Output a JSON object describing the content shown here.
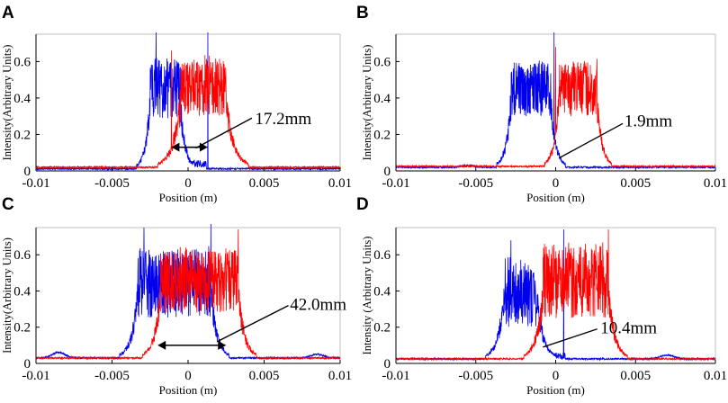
{
  "figure": {
    "colors": {
      "blue": "#0000ee",
      "red": "#ff0000",
      "axis": "#000000",
      "frame": "#bfbfbf"
    }
  },
  "chart_data": [
    {
      "type": "line",
      "panel_label": "A",
      "xlabel": "Position (m)",
      "ylabel": "Intensity(Arbitrary Units)",
      "xlim": [
        -0.01,
        0.01
      ],
      "ylim": [
        0,
        0.75
      ],
      "xticks": [
        -0.01,
        -0.005,
        0,
        0.005,
        0.01
      ],
      "xtick_labels": [
        "-0.01",
        "-0.005",
        "0",
        "0.005",
        "0.01"
      ],
      "yticks": [
        0,
        0.2,
        0.4,
        0.6
      ],
      "ytick_labels": [
        "0",
        "0.2",
        "0.4",
        "0.6"
      ],
      "annotation": {
        "text": "17.2mm",
        "arrow_x": [
          -0.0011,
          0.0013
        ],
        "arrow_y": 0.13,
        "pointer_from": [
          0.0005,
          0.125
        ],
        "pointer_to": [
          0.0042,
          0.29
        ],
        "label_x": 0.0044,
        "label_y": 0.29
      },
      "series": [
        {
          "name": "blue",
          "color": "#0000ee",
          "plateau_x": [
            -0.0025,
            -0.0005
          ],
          "plateau_range": [
            0.28,
            0.62
          ],
          "edge_width": 0.0003,
          "spikes": [
            [
              -0.0021,
              0.76
            ],
            [
              0.0013,
              0.76
            ]
          ],
          "tail_x": 0.0012,
          "baseline": 0.012
        },
        {
          "name": "red",
          "color": "#ff0000",
          "plateau_x": [
            -0.0005,
            0.0025
          ],
          "plateau_range": [
            0.3,
            0.62
          ],
          "edge_width": 0.0005,
          "spikes": [
            [
              -0.0011,
              0.66
            ]
          ],
          "baseline": 0.02
        }
      ]
    },
    {
      "type": "line",
      "panel_label": "B",
      "xlabel": "Position (m)",
      "ylabel": "Intensity(Arbitrary Units)",
      "xlim": [
        -0.01,
        0.01
      ],
      "ylim": [
        0,
        0.75
      ],
      "xticks": [
        -0.01,
        -0.005,
        0,
        0.005,
        0.01
      ],
      "xtick_labels": [
        "-0.01",
        "-0.005",
        "0",
        "0.005",
        "0.01"
      ],
      "yticks": [
        0,
        0.2,
        0.4,
        0.6
      ],
      "ytick_labels": [
        "0",
        "0.2",
        "0.4",
        "0.6"
      ],
      "annotation": {
        "text": "1.9mm",
        "pointer_from": [
          0.0002,
          0.07
        ],
        "pointer_to": [
          0.0042,
          0.26
        ],
        "label_x": 0.0043,
        "label_y": 0.28
      },
      "series": [
        {
          "name": "blue",
          "color": "#0000ee",
          "plateau_x": [
            -0.0028,
            -0.0003
          ],
          "plateau_range": [
            0.3,
            0.6
          ],
          "edge_width": 0.0003,
          "spikes": [
            [
              -0.0001,
              0.76
            ]
          ],
          "baseline": 0.02,
          "bumps": [
            [
              -0.0055,
              0.01
            ]
          ]
        },
        {
          "name": "red",
          "color": "#ff0000",
          "plateau_x": [
            0.0002,
            0.0026
          ],
          "plateau_range": [
            0.3,
            0.6
          ],
          "edge_width": 0.0003,
          "spikes": [
            [
              -0.0,
              0.68
            ]
          ],
          "baseline": 0.025
        }
      ]
    },
    {
      "type": "line",
      "panel_label": "C",
      "xlabel": "Position (m)",
      "ylabel": "Intensity(Arbitrary Units)",
      "xlim": [
        -0.01,
        0.01
      ],
      "ylim": [
        0,
        0.75
      ],
      "xticks": [
        -0.01,
        -0.005,
        0,
        0.005,
        0.01
      ],
      "xtick_labels": [
        "-0.01",
        "-0.005",
        "0",
        "0.005",
        "0.01"
      ],
      "yticks": [
        0,
        0.2,
        0.4,
        0.6
      ],
      "ytick_labels": [
        "0",
        "0.2",
        "0.4",
        "0.6"
      ],
      "annotation": {
        "text": "42.0mm",
        "arrow_x": [
          -0.002,
          0.0025
        ],
        "arrow_y": 0.1,
        "pointer_from": [
          0.0019,
          0.12
        ],
        "pointer_to": [
          0.0066,
          0.32
        ],
        "label_x": 0.0067,
        "label_y": 0.33
      },
      "series": [
        {
          "name": "blue",
          "color": "#0000ee",
          "plateau_x": [
            -0.0033,
            0.0015
          ],
          "plateau_range": [
            0.25,
            0.63
          ],
          "edge_width": 0.0004,
          "spikes": [
            [
              -0.0029,
              0.75
            ],
            [
              0.0015,
              0.77
            ]
          ],
          "baseline": 0.03,
          "bumps": [
            [
              -0.0085,
              0.03
            ],
            [
              0.0085,
              0.02
            ]
          ]
        },
        {
          "name": "red",
          "color": "#ff0000",
          "plateau_x": [
            -0.0018,
            0.0033
          ],
          "plateau_range": [
            0.28,
            0.63
          ],
          "edge_width": 0.0004,
          "spikes": [
            [
              0.0033,
              0.74
            ]
          ],
          "baseline": 0.03
        }
      ]
    },
    {
      "type": "line",
      "panel_label": "D",
      "xlabel": "Position (m)",
      "ylabel": "Intensity (Arbitrary Units)",
      "xlim": [
        -0.01,
        0.01
      ],
      "ylim": [
        0,
        0.75
      ],
      "xticks": [
        -0.01,
        -0.005,
        0,
        0.005,
        0.01
      ],
      "xtick_labels": [
        "-0.01",
        "-0.005",
        "0",
        "0.005",
        "0.01"
      ],
      "yticks": [
        0,
        0.2,
        0.4,
        0.6
      ],
      "ytick_labels": [
        "0",
        "0.2",
        "0.4",
        "0.6"
      ],
      "annotation": {
        "text": "10.4mm",
        "pointer_from": [
          -0.0008,
          0.09
        ],
        "pointer_to": [
          0.0026,
          0.19
        ],
        "label_x": 0.0028,
        "label_y": 0.2
      },
      "series": [
        {
          "name": "blue",
          "color": "#0000ee",
          "plateau_x": [
            -0.0032,
            -0.0012
          ],
          "plateau_range": [
            0.2,
            0.57
          ],
          "edge_width": 0.0004,
          "spikes": [
            [
              -0.0028,
              0.68
            ],
            [
              0.0005,
              0.74
            ]
          ],
          "tail_x": 0.0006,
          "baseline": 0.025,
          "bumps": [
            [
              0.007,
              0.02
            ]
          ]
        },
        {
          "name": "red",
          "color": "#ff0000",
          "plateau_x": [
            -0.0008,
            0.0033
          ],
          "plateau_range": [
            0.25,
            0.65
          ],
          "edge_width": 0.0004,
          "spikes": [
            [
              -0.0007,
              0.66
            ],
            [
              0.0033,
              0.74
            ]
          ],
          "baseline": 0.025
        }
      ]
    }
  ]
}
